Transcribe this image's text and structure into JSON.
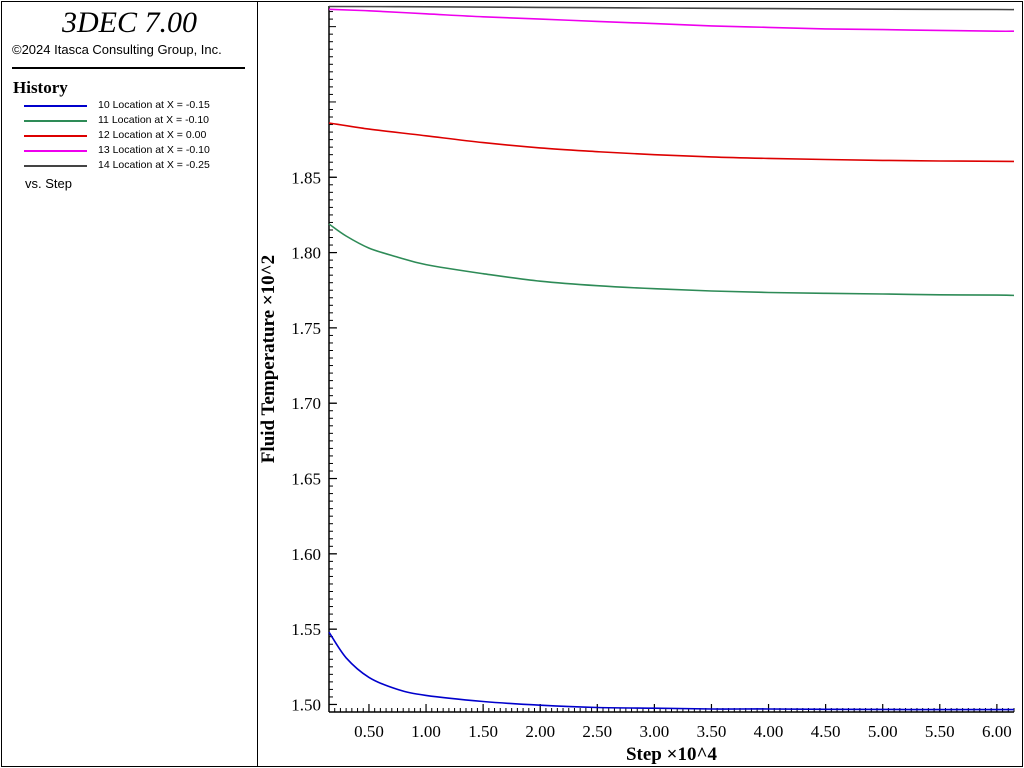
{
  "header": {
    "app_title": "3DEC 7.00",
    "copyright": "©2024 Itasca Consulting Group, Inc."
  },
  "legend": {
    "title": "History",
    "items": [
      {
        "label": "10 Location at X = -0.15",
        "color": "#0000cc"
      },
      {
        "label": "11 Location at X = -0.10",
        "color": "#2e8b57"
      },
      {
        "label": "12 Location at X =  0.00",
        "color": "#dd0000"
      },
      {
        "label": "13 Location at X = -0.10",
        "color": "#ee00ee"
      },
      {
        "label": "14 Location at X = -0.25",
        "color": "#444444"
      }
    ],
    "vs_label": "vs. Step"
  },
  "chart_data": {
    "type": "line",
    "xlabel": "Step ×10^4",
    "ylabel": "Fluid Temperature ×10^2",
    "xlim": [
      0.15,
      6.15
    ],
    "ylim": [
      1.495,
      1.9637
    ],
    "xticks": [
      "0.50",
      "1.00",
      "1.50",
      "2.00",
      "2.50",
      "3.00",
      "3.50",
      "4.00",
      "4.50",
      "5.00",
      "5.50",
      "6.00"
    ],
    "yticks": [
      "1.50",
      "1.55",
      "1.60",
      "1.65",
      "1.70",
      "1.75",
      "1.80",
      "1.85"
    ],
    "series": [
      {
        "name": "10 Location at X = -0.15",
        "color": "#0000cc",
        "x": [
          0.15,
          0.3,
          0.5,
          0.75,
          1.0,
          1.5,
          2.0,
          2.5,
          3.0,
          3.5,
          4.0,
          4.5,
          5.0,
          5.5,
          6.0,
          6.15
        ],
        "y": [
          1.548,
          1.531,
          1.518,
          1.51,
          1.506,
          1.502,
          1.4995,
          1.498,
          1.4975,
          1.497,
          1.497,
          1.4968,
          1.4967,
          1.4966,
          1.4966,
          1.4966
        ]
      },
      {
        "name": "11 Location at X = -0.10",
        "color": "#2e8b57",
        "x": [
          0.15,
          0.3,
          0.5,
          0.75,
          1.0,
          1.5,
          2.0,
          2.5,
          3.0,
          3.5,
          4.0,
          4.5,
          5.0,
          5.5,
          6.0,
          6.15
        ],
        "y": [
          1.819,
          1.811,
          1.803,
          1.797,
          1.792,
          1.786,
          1.781,
          1.778,
          1.776,
          1.7745,
          1.7735,
          1.773,
          1.7725,
          1.772,
          1.7718,
          1.7716
        ]
      },
      {
        "name": "12 Location at X =  0.00",
        "color": "#dd0000",
        "x": [
          0.15,
          0.5,
          1.0,
          1.5,
          2.0,
          2.5,
          3.0,
          3.5,
          4.0,
          4.5,
          5.0,
          5.5,
          6.0,
          6.15
        ],
        "y": [
          1.886,
          1.882,
          1.8775,
          1.873,
          1.8695,
          1.867,
          1.865,
          1.8635,
          1.8625,
          1.8618,
          1.8612,
          1.8608,
          1.8606,
          1.8605
        ]
      },
      {
        "name": "13 Location at X = -0.10",
        "color": "#ee00ee",
        "x": [
          0.15,
          0.5,
          1.0,
          1.5,
          2.0,
          2.5,
          3.0,
          3.5,
          4.0,
          4.5,
          5.0,
          5.5,
          6.0,
          6.15
        ],
        "y": [
          1.9615,
          1.9605,
          1.9585,
          1.9565,
          1.955,
          1.9535,
          1.952,
          1.9505,
          1.9495,
          1.9485,
          1.948,
          1.9475,
          1.947,
          1.947
        ]
      },
      {
        "name": "14 Location at X = -0.25",
        "color": "#444444",
        "x": [
          0.15,
          1.0,
          2.0,
          3.0,
          4.0,
          5.0,
          6.0,
          6.15
        ],
        "y": [
          1.9634,
          1.9632,
          1.9628,
          1.9624,
          1.962,
          1.9616,
          1.9614,
          1.9613
        ]
      }
    ]
  }
}
